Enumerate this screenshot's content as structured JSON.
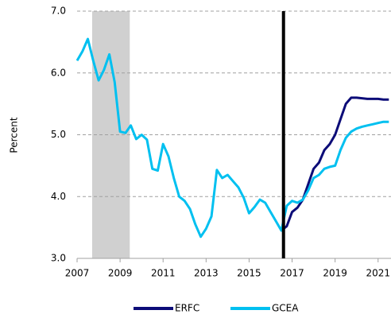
{
  "chart_data": {
    "type": "line",
    "y_label": "Percent",
    "x": [
      2007,
      2007.25,
      2007.5,
      2007.75,
      2008,
      2008.25,
      2008.5,
      2008.75,
      2009,
      2009.25,
      2009.5,
      2009.75,
      2010,
      2010.25,
      2010.5,
      2010.75,
      2011,
      2011.25,
      2011.5,
      2011.75,
      2012,
      2012.25,
      2012.5,
      2012.75,
      2013,
      2013.25,
      2013.5,
      2013.75,
      2014,
      2014.25,
      2014.5,
      2014.75,
      2015,
      2015.25,
      2015.5,
      2015.75,
      2016,
      2016.25,
      2016.5,
      2016.75,
      2017,
      2017.25,
      2017.5,
      2017.75,
      2018,
      2018.25,
      2018.5,
      2018.75,
      2019,
      2019.25,
      2019.5,
      2019.75,
      2020,
      2020.25,
      2020.5,
      2020.75,
      2021,
      2021.25,
      2021.5
    ],
    "series": [
      {
        "name": "ERFC",
        "color": "#0c0c78",
        "values": [
          null,
          null,
          null,
          null,
          null,
          null,
          null,
          null,
          null,
          null,
          null,
          null,
          null,
          null,
          null,
          null,
          null,
          null,
          null,
          null,
          null,
          null,
          null,
          null,
          null,
          null,
          null,
          null,
          null,
          null,
          null,
          null,
          null,
          null,
          null,
          null,
          null,
          null,
          3.45,
          3.52,
          3.75,
          3.82,
          3.95,
          4.2,
          4.45,
          4.55,
          4.75,
          4.85,
          5.0,
          5.25,
          5.5,
          5.6,
          5.6,
          5.59,
          5.58,
          5.58,
          5.58,
          5.57,
          5.57
        ]
      },
      {
        "name": "GCEA",
        "color": "#00c0f0",
        "values": [
          6.2,
          6.35,
          6.55,
          6.2,
          5.88,
          6.05,
          6.3,
          5.85,
          5.05,
          5.03,
          5.15,
          4.93,
          5.0,
          4.92,
          4.45,
          4.42,
          4.85,
          4.65,
          4.3,
          4.0,
          3.93,
          3.8,
          3.55,
          3.35,
          3.48,
          3.68,
          4.43,
          4.3,
          4.35,
          4.25,
          4.15,
          3.98,
          3.73,
          3.83,
          3.95,
          3.9,
          3.75,
          3.6,
          3.45,
          3.85,
          3.93,
          3.9,
          3.95,
          4.1,
          4.3,
          4.35,
          4.45,
          4.48,
          4.5,
          4.75,
          4.95,
          5.05,
          5.1,
          5.13,
          5.15,
          5.17,
          5.19,
          5.21,
          5.21
        ]
      }
    ],
    "xlim": [
      2007,
      2021.6
    ],
    "xticks": [
      2007,
      2009,
      2011,
      2013,
      2015,
      2017,
      2019,
      2021
    ],
    "ylim": [
      3,
      7
    ],
    "yticks": [
      {
        "value": 3,
        "label": "3.0"
      },
      {
        "value": 4,
        "label": "4.0"
      },
      {
        "value": 5,
        "label": "5.0"
      },
      {
        "value": 6,
        "label": "6.0"
      },
      {
        "value": 7,
        "label": "7.0"
      }
    ],
    "grid": true,
    "shade": {
      "x": [
        2007.7,
        2009.45
      ],
      "color": "#d0d0d0"
    },
    "vline": {
      "x": 2016.6,
      "color": "#000000"
    },
    "legend": "bottom"
  }
}
